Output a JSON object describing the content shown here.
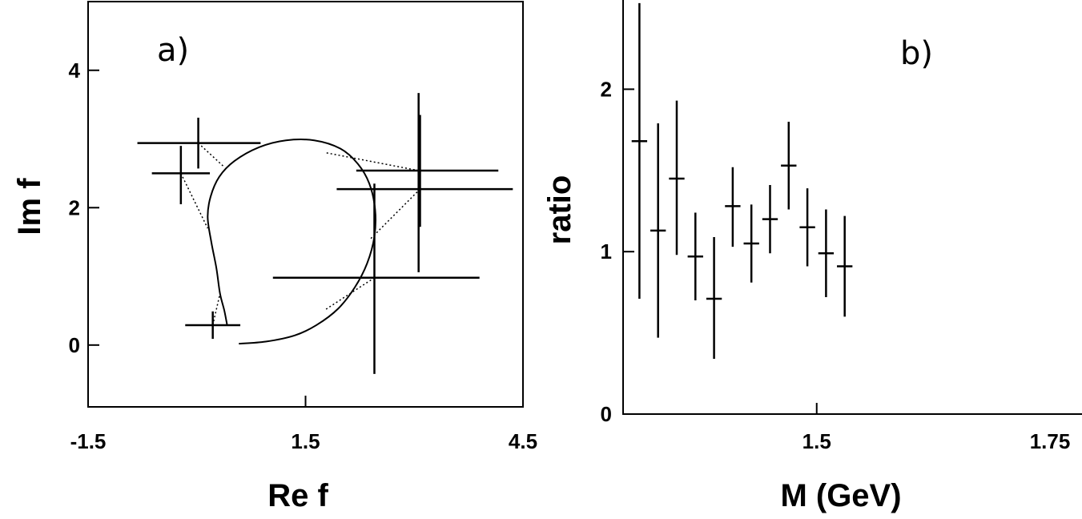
{
  "chart_data": [
    {
      "panel_label": "a)",
      "type": "scatter",
      "xlabel": "Re f",
      "ylabel": "Im f",
      "xlim": [
        -1.5,
        4.5
      ],
      "ylim": [
        -0.9,
        5.0
      ],
      "x_ticks": [
        {
          "value": -1.5,
          "label": "-1.5"
        },
        {
          "value": 1.5,
          "label": "1.5"
        },
        {
          "value": 4.5,
          "label": "4.5"
        }
      ],
      "y_ticks": [
        {
          "value": 0,
          "label": "0"
        },
        {
          "value": 2,
          "label": "2"
        },
        {
          "value": 4,
          "label": "4"
        }
      ],
      "points": [
        {
          "x": 0.02,
          "y": 2.94,
          "xerr": [
            0.84,
            0.86
          ],
          "yerr": [
            0.37,
            0.37
          ]
        },
        {
          "x": -0.22,
          "y": 2.5,
          "xerr": [
            0.4,
            0.4
          ],
          "yerr": [
            0.45,
            0.4
          ]
        },
        {
          "x": 0.22,
          "y": 0.29,
          "xerr": [
            0.38,
            0.38
          ],
          "yerr": [
            0.2,
            0.2
          ]
        },
        {
          "x": 3.06,
          "y": 2.54,
          "xerr": [
            0.86,
            1.1
          ],
          "yerr": [
            1.48,
            1.13
          ]
        },
        {
          "x": 3.08,
          "y": 2.27,
          "xerr": [
            1.15,
            1.28
          ],
          "yerr": [
            0.55,
            1.08
          ]
        },
        {
          "x": 2.45,
          "y": 0.98,
          "xerr": [
            1.4,
            1.45
          ],
          "yerr": [
            1.4,
            1.37
          ]
        }
      ],
      "model_curve": [
        [
          0.58,
          0.02
        ],
        [
          0.95,
          0.05
        ],
        [
          1.35,
          0.14
        ],
        [
          1.65,
          0.29
        ],
        [
          1.95,
          0.53
        ],
        [
          2.18,
          0.84
        ],
        [
          2.35,
          1.19
        ],
        [
          2.45,
          1.58
        ],
        [
          2.46,
          1.97
        ],
        [
          2.38,
          2.35
        ],
        [
          2.22,
          2.64
        ],
        [
          1.98,
          2.86
        ],
        [
          1.62,
          2.98
        ],
        [
          1.23,
          2.98
        ],
        [
          0.86,
          2.88
        ],
        [
          0.52,
          2.68
        ],
        [
          0.31,
          2.45
        ],
        [
          0.19,
          2.16
        ],
        [
          0.15,
          1.86
        ],
        [
          0.2,
          1.5
        ],
        [
          0.27,
          1.12
        ],
        [
          0.32,
          0.75
        ],
        [
          0.38,
          0.5
        ],
        [
          0.42,
          0.28
        ]
      ],
      "connectors": [
        [
          [
            0.02,
            2.94
          ],
          [
            0.38,
            2.59
          ]
        ],
        [
          [
            -0.22,
            2.5
          ],
          [
            0.15,
            1.7
          ]
        ],
        [
          [
            0.22,
            0.29
          ],
          [
            0.32,
            0.75
          ]
        ],
        [
          [
            3.06,
            2.54
          ],
          [
            1.78,
            2.8
          ]
        ],
        [
          [
            3.08,
            2.27
          ],
          [
            2.4,
            1.55
          ]
        ],
        [
          [
            2.45,
            0.98
          ],
          [
            1.78,
            0.52
          ]
        ]
      ]
    },
    {
      "panel_label": "b)",
      "type": "scatter",
      "xlabel": "M (GeV)",
      "ylabel": "ratio",
      "xlim": [
        1.2925,
        1.75
      ],
      "ylim": [
        0,
        2.5
      ],
      "x_ticks": [
        {
          "value": 1.5,
          "label": "1.5"
        },
        {
          "value": 1.75,
          "label": "1.75"
        }
      ],
      "y_ticks": [
        {
          "value": 0,
          "label": "0"
        },
        {
          "value": 1,
          "label": "1"
        },
        {
          "value": 2,
          "label": "2"
        }
      ],
      "points": [
        {
          "x": 1.31,
          "y": 1.68,
          "xerr": 0.0083,
          "yerr_low": 0.97,
          "yerr_high": 0.85
        },
        {
          "x": 1.33,
          "y": 1.13,
          "xerr": 0.0083,
          "yerr_low": 0.66,
          "yerr_high": 0.66
        },
        {
          "x": 1.35,
          "y": 1.45,
          "xerr": 0.0083,
          "yerr_low": 0.47,
          "yerr_high": 0.48
        },
        {
          "x": 1.37,
          "y": 0.97,
          "xerr": 0.0083,
          "yerr_low": 0.27,
          "yerr_high": 0.27
        },
        {
          "x": 1.39,
          "y": 0.71,
          "xerr": 0.0083,
          "yerr_low": 0.37,
          "yerr_high": 0.38
        },
        {
          "x": 1.41,
          "y": 1.28,
          "xerr": 0.0083,
          "yerr_low": 0.25,
          "yerr_high": 0.24
        },
        {
          "x": 1.43,
          "y": 1.05,
          "xerr": 0.0083,
          "yerr_low": 0.24,
          "yerr_high": 0.24
        },
        {
          "x": 1.45,
          "y": 1.2,
          "xerr": 0.0083,
          "yerr_low": 0.21,
          "yerr_high": 0.21
        },
        {
          "x": 1.47,
          "y": 1.53,
          "xerr": 0.0083,
          "yerr_low": 0.27,
          "yerr_high": 0.27
        },
        {
          "x": 1.49,
          "y": 1.15,
          "xerr": 0.0083,
          "yerr_low": 0.24,
          "yerr_high": 0.24
        },
        {
          "x": 1.51,
          "y": 0.99,
          "xerr": 0.0083,
          "yerr_low": 0.27,
          "yerr_high": 0.27
        },
        {
          "x": 1.53,
          "y": 0.91,
          "xerr": 0.0083,
          "yerr_low": 0.31,
          "yerr_high": 0.31
        }
      ]
    }
  ]
}
